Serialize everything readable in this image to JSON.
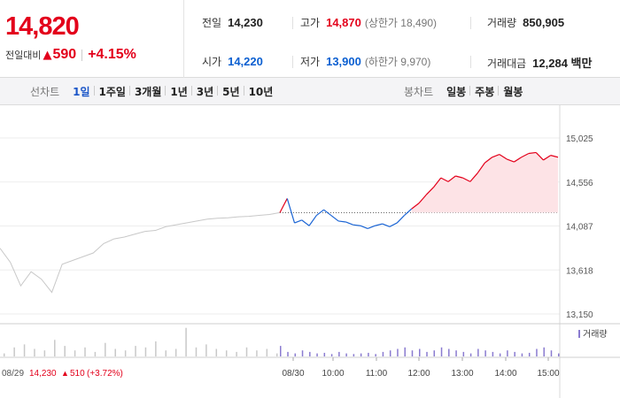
{
  "quote": {
    "price": "14,820",
    "change_label": "전일대비",
    "change_arrow": "▲",
    "change_amount": "590",
    "change_percent": "+4.15%",
    "stats": [
      {
        "key": "전일",
        "value": "14,230",
        "color": "normal"
      },
      {
        "key": "고가",
        "value": "14,870",
        "sub": "(상한가 18,490)",
        "color": "red"
      },
      {
        "key": "거래량",
        "value": "850,905",
        "color": "normal"
      },
      {
        "key": "시가",
        "value": "14,220",
        "color": "blue"
      },
      {
        "key": "저가",
        "value": "13,900",
        "sub": "(하한가 9,970)",
        "color": "blue"
      },
      {
        "key": "거래대금",
        "value": "12,284 백만",
        "color": "normal"
      }
    ]
  },
  "tabs": {
    "line_title": "선차트",
    "line_tabs": [
      "1일",
      "1주일",
      "3개월",
      "1년",
      "3년",
      "5년",
      "10년"
    ],
    "active_line_tab": "1일",
    "candle_title": "봉차트",
    "candle_tabs": [
      "일봉",
      "주봉",
      "월봉"
    ]
  },
  "colors": {
    "up": "#e3001b",
    "down": "#1a64d4",
    "prev_day_line": "#c8c8c8",
    "area_fill": "#fde3e6"
  },
  "chart_data": {
    "type": "line",
    "base_price": 14230,
    "y_ticks": [
      "15,025",
      "14,556",
      "14,087",
      "13,618",
      "13,150"
    ],
    "ylim": [
      13150,
      15025
    ],
    "x_labels": [
      "08/30",
      "10:00",
      "11:00",
      "12:00",
      "13:00",
      "14:00",
      "15:00"
    ],
    "prev_day_label": "08/29",
    "prev_day_close": "14,230",
    "prev_day_change_arrow": "▲",
    "prev_day_change": "510",
    "prev_day_change_pct": "(+3.72%)",
    "volume_legend": "거래량",
    "prev_day_series": [
      13850,
      13700,
      13450,
      13600,
      13520,
      13380,
      13680,
      13720,
      13760,
      13800,
      13900,
      13950,
      13970,
      14000,
      14030,
      14040,
      14080,
      14100,
      14120,
      14140,
      14160,
      14170,
      14175,
      14185,
      14190,
      14200,
      14210,
      14230
    ],
    "today_series": [
      14230,
      14380,
      14120,
      14150,
      14090,
      14200,
      14260,
      14200,
      14140,
      14130,
      14100,
      14090,
      14060,
      14090,
      14110,
      14080,
      14120,
      14200,
      14270,
      14330,
      14420,
      14500,
      14600,
      14560,
      14620,
      14600,
      14560,
      14650,
      14760,
      14820,
      14850,
      14800,
      14770,
      14820,
      14860,
      14870,
      14790,
      14840,
      14820
    ],
    "prev_day_volume": [
      10,
      30,
      40,
      25,
      20,
      55,
      35,
      20,
      30,
      15,
      45,
      25,
      20,
      35,
      30,
      50,
      20,
      25,
      95,
      30,
      40,
      25,
      20,
      15,
      30,
      20,
      25,
      10
    ],
    "today_volume": [
      35,
      15,
      10,
      20,
      15,
      10,
      12,
      8,
      15,
      10,
      8,
      10,
      12,
      8,
      15,
      20,
      25,
      30,
      20,
      25,
      15,
      20,
      30,
      25,
      20,
      15,
      10,
      25,
      20,
      15,
      10,
      20,
      15,
      10,
      12,
      25,
      30,
      20,
      10
    ]
  }
}
